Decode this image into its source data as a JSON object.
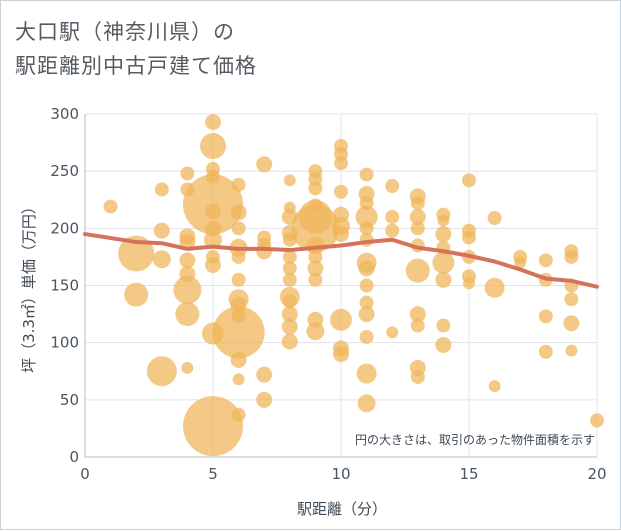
{
  "title": {
    "line1": "大口駅（神奈川県）の",
    "line2": "駅距離別中古戸建て価格"
  },
  "note": "円の大きさは、取引のあった物件面積を示す",
  "colors": {
    "bubble": "#f0b458",
    "line": "#d4735a",
    "grid": "#dfe3e8",
    "axis": "#b5bcc4"
  },
  "chart_data": {
    "type": "scatter",
    "xlabel": "駅距離（分）",
    "ylabel": "坪（3.3㎡）単価（万円）",
    "xlim": [
      0,
      20
    ],
    "ylim": [
      0,
      300
    ],
    "xticks": [
      0,
      5,
      10,
      15,
      20
    ],
    "yticks": [
      0,
      50,
      100,
      150,
      200,
      250,
      300
    ],
    "bubbles": [
      {
        "x": 1,
        "y": 219,
        "s": 7
      },
      {
        "x": 2,
        "y": 178,
        "s": 18
      },
      {
        "x": 2,
        "y": 142,
        "s": 12
      },
      {
        "x": 3,
        "y": 234,
        "s": 7
      },
      {
        "x": 3,
        "y": 198,
        "s": 8
      },
      {
        "x": 3,
        "y": 173,
        "s": 9
      },
      {
        "x": 3,
        "y": 75,
        "s": 15
      },
      {
        "x": 4,
        "y": 248,
        "s": 7
      },
      {
        "x": 4,
        "y": 234,
        "s": 7
      },
      {
        "x": 4,
        "y": 193,
        "s": 8
      },
      {
        "x": 4,
        "y": 188,
        "s": 8
      },
      {
        "x": 4,
        "y": 172,
        "s": 8
      },
      {
        "x": 4,
        "y": 160,
        "s": 8
      },
      {
        "x": 4,
        "y": 146,
        "s": 14
      },
      {
        "x": 4,
        "y": 125,
        "s": 12
      },
      {
        "x": 4,
        "y": 78,
        "s": 6
      },
      {
        "x": 5,
        "y": 293,
        "s": 8
      },
      {
        "x": 5,
        "y": 272,
        "s": 13
      },
      {
        "x": 5,
        "y": 252,
        "s": 7
      },
      {
        "x": 5,
        "y": 245,
        "s": 7
      },
      {
        "x": 5,
        "y": 221,
        "s": 30
      },
      {
        "x": 5,
        "y": 215,
        "s": 8
      },
      {
        "x": 5,
        "y": 200,
        "s": 8
      },
      {
        "x": 5,
        "y": 190,
        "s": 9
      },
      {
        "x": 5,
        "y": 175,
        "s": 7
      },
      {
        "x": 5,
        "y": 168,
        "s": 8
      },
      {
        "x": 5,
        "y": 108,
        "s": 11
      },
      {
        "x": 5,
        "y": 27,
        "s": 30
      },
      {
        "x": 6,
        "y": 238,
        "s": 7
      },
      {
        "x": 6,
        "y": 214,
        "s": 8
      },
      {
        "x": 6,
        "y": 200,
        "s": 7
      },
      {
        "x": 6,
        "y": 183,
        "s": 9
      },
      {
        "x": 6,
        "y": 175,
        "s": 7
      },
      {
        "x": 6,
        "y": 155,
        "s": 7
      },
      {
        "x": 6,
        "y": 138,
        "s": 10
      },
      {
        "x": 6,
        "y": 133,
        "s": 8
      },
      {
        "x": 6,
        "y": 123,
        "s": 7
      },
      {
        "x": 6,
        "y": 109,
        "s": 26
      },
      {
        "x": 6,
        "y": 85,
        "s": 8
      },
      {
        "x": 6,
        "y": 68,
        "s": 6
      },
      {
        "x": 6,
        "y": 37,
        "s": 7
      },
      {
        "x": 7,
        "y": 256,
        "s": 8
      },
      {
        "x": 7,
        "y": 192,
        "s": 7
      },
      {
        "x": 7,
        "y": 186,
        "s": 7
      },
      {
        "x": 7,
        "y": 180,
        "s": 8
      },
      {
        "x": 7,
        "y": 72,
        "s": 8
      },
      {
        "x": 7,
        "y": 50,
        "s": 8
      },
      {
        "x": 8,
        "y": 242,
        "s": 6
      },
      {
        "x": 8,
        "y": 218,
        "s": 6
      },
      {
        "x": 8,
        "y": 210,
        "s": 8
      },
      {
        "x": 8,
        "y": 196,
        "s": 8
      },
      {
        "x": 8,
        "y": 190,
        "s": 7
      },
      {
        "x": 8,
        "y": 175,
        "s": 7
      },
      {
        "x": 8,
        "y": 165,
        "s": 7
      },
      {
        "x": 8,
        "y": 155,
        "s": 7
      },
      {
        "x": 8,
        "y": 140,
        "s": 10
      },
      {
        "x": 8,
        "y": 136,
        "s": 7
      },
      {
        "x": 8,
        "y": 125,
        "s": 8
      },
      {
        "x": 8,
        "y": 114,
        "s": 8
      },
      {
        "x": 8,
        "y": 101,
        "s": 8
      },
      {
        "x": 9,
        "y": 250,
        "s": 7
      },
      {
        "x": 9,
        "y": 243,
        "s": 7
      },
      {
        "x": 9,
        "y": 235,
        "s": 7
      },
      {
        "x": 9,
        "y": 220,
        "s": 7
      },
      {
        "x": 9,
        "y": 210,
        "s": 17
      },
      {
        "x": 9,
        "y": 200,
        "s": 24
      },
      {
        "x": 9,
        "y": 185,
        "s": 9
      },
      {
        "x": 9,
        "y": 175,
        "s": 7
      },
      {
        "x": 9,
        "y": 165,
        "s": 8
      },
      {
        "x": 9,
        "y": 155,
        "s": 7
      },
      {
        "x": 9,
        "y": 120,
        "s": 8
      },
      {
        "x": 9,
        "y": 110,
        "s": 9
      },
      {
        "x": 10,
        "y": 272,
        "s": 7
      },
      {
        "x": 10,
        "y": 265,
        "s": 7
      },
      {
        "x": 10,
        "y": 257,
        "s": 7
      },
      {
        "x": 10,
        "y": 232,
        "s": 7
      },
      {
        "x": 10,
        "y": 212,
        "s": 8
      },
      {
        "x": 10,
        "y": 202,
        "s": 9
      },
      {
        "x": 10,
        "y": 195,
        "s": 8
      },
      {
        "x": 10,
        "y": 120,
        "s": 11
      },
      {
        "x": 10,
        "y": 95,
        "s": 8
      },
      {
        "x": 10,
        "y": 90,
        "s": 8
      },
      {
        "x": 11,
        "y": 247,
        "s": 7
      },
      {
        "x": 11,
        "y": 230,
        "s": 8
      },
      {
        "x": 11,
        "y": 222,
        "s": 7
      },
      {
        "x": 11,
        "y": 210,
        "s": 11
      },
      {
        "x": 11,
        "y": 200,
        "s": 7
      },
      {
        "x": 11,
        "y": 190,
        "s": 7
      },
      {
        "x": 11,
        "y": 170,
        "s": 10
      },
      {
        "x": 11,
        "y": 165,
        "s": 8
      },
      {
        "x": 11,
        "y": 150,
        "s": 7
      },
      {
        "x": 11,
        "y": 135,
        "s": 7
      },
      {
        "x": 11,
        "y": 125,
        "s": 8
      },
      {
        "x": 11,
        "y": 105,
        "s": 7
      },
      {
        "x": 11,
        "y": 73,
        "s": 10
      },
      {
        "x": 11,
        "y": 47,
        "s": 9
      },
      {
        "x": 12,
        "y": 237,
        "s": 7
      },
      {
        "x": 12,
        "y": 210,
        "s": 7
      },
      {
        "x": 12,
        "y": 198,
        "s": 7
      },
      {
        "x": 12,
        "y": 109,
        "s": 6
      },
      {
        "x": 13,
        "y": 228,
        "s": 8
      },
      {
        "x": 13,
        "y": 222,
        "s": 7
      },
      {
        "x": 13,
        "y": 210,
        "s": 8
      },
      {
        "x": 13,
        "y": 200,
        "s": 7
      },
      {
        "x": 13,
        "y": 185,
        "s": 7
      },
      {
        "x": 13,
        "y": 163,
        "s": 12
      },
      {
        "x": 13,
        "y": 125,
        "s": 8
      },
      {
        "x": 13,
        "y": 115,
        "s": 7
      },
      {
        "x": 13,
        "y": 78,
        "s": 8
      },
      {
        "x": 13,
        "y": 70,
        "s": 7
      },
      {
        "x": 14,
        "y": 212,
        "s": 7
      },
      {
        "x": 14,
        "y": 207,
        "s": 6
      },
      {
        "x": 14,
        "y": 195,
        "s": 8
      },
      {
        "x": 14,
        "y": 183,
        "s": 7
      },
      {
        "x": 14,
        "y": 170,
        "s": 11
      },
      {
        "x": 14,
        "y": 155,
        "s": 8
      },
      {
        "x": 14,
        "y": 115,
        "s": 7
      },
      {
        "x": 14,
        "y": 98,
        "s": 8
      },
      {
        "x": 15,
        "y": 242,
        "s": 7
      },
      {
        "x": 15,
        "y": 198,
        "s": 7
      },
      {
        "x": 15,
        "y": 192,
        "s": 7
      },
      {
        "x": 15,
        "y": 175,
        "s": 7
      },
      {
        "x": 15,
        "y": 158,
        "s": 7
      },
      {
        "x": 15,
        "y": 152,
        "s": 6
      },
      {
        "x": 16,
        "y": 209,
        "s": 7
      },
      {
        "x": 16,
        "y": 148,
        "s": 10
      },
      {
        "x": 16,
        "y": 62,
        "s": 6
      },
      {
        "x": 17,
        "y": 175,
        "s": 7
      },
      {
        "x": 17,
        "y": 170,
        "s": 6
      },
      {
        "x": 18,
        "y": 172,
        "s": 7
      },
      {
        "x": 18,
        "y": 155,
        "s": 7
      },
      {
        "x": 18,
        "y": 123,
        "s": 7
      },
      {
        "x": 18,
        "y": 92,
        "s": 7
      },
      {
        "x": 19,
        "y": 180,
        "s": 7
      },
      {
        "x": 19,
        "y": 175,
        "s": 7
      },
      {
        "x": 19,
        "y": 150,
        "s": 7
      },
      {
        "x": 19,
        "y": 138,
        "s": 7
      },
      {
        "x": 19,
        "y": 117,
        "s": 8
      },
      {
        "x": 19,
        "y": 93,
        "s": 6
      },
      {
        "x": 20,
        "y": 32,
        "s": 7
      }
    ],
    "trend": {
      "x": [
        0,
        2,
        3,
        4,
        5,
        6,
        7,
        8,
        9,
        10,
        11,
        12,
        13,
        14,
        15,
        16,
        17,
        18,
        19,
        20
      ],
      "y": [
        195,
        188,
        187,
        182,
        184,
        182,
        182,
        181,
        183,
        185,
        188,
        190,
        183,
        180,
        176,
        171,
        164,
        156,
        154,
        149
      ]
    }
  }
}
